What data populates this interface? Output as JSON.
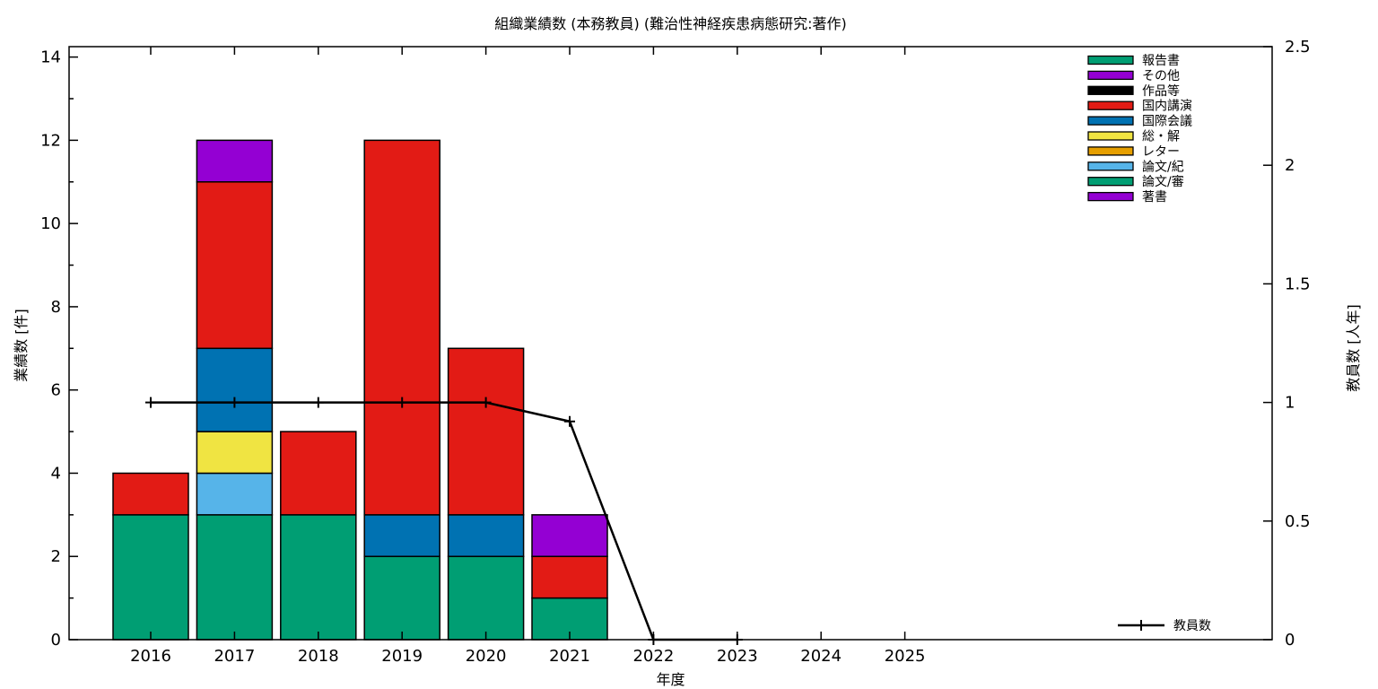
{
  "chart_data": {
    "type": "bar",
    "subtype": "stacked-bars-with-line",
    "title": "組織業績数 (本務教員) (難治性神経疾患病態研究:著作)",
    "xlabel": "年度",
    "ylabel": "業績数 [件]",
    "y2label": "教員数 [人年]",
    "categories": [
      "2016",
      "2017",
      "2018",
      "2019",
      "2020",
      "2021",
      "2022",
      "2023",
      "2024",
      "2025"
    ],
    "ylim": [
      0,
      14.25
    ],
    "y_ticks": [
      0,
      2,
      4,
      6,
      8,
      10,
      12,
      14
    ],
    "y_minor_ticks": [
      1,
      3,
      5,
      7,
      9,
      11,
      13
    ],
    "y2lim": [
      0,
      2.5
    ],
    "y2_ticks": [
      0,
      0.5,
      1,
      1.5,
      2,
      2.5
    ],
    "grid": false,
    "legend_position": "top-right-inside",
    "stack_note": "series listed top legend entry first; bars stack bottom-to-top in reverse of this list",
    "series": [
      {
        "name": "報告書",
        "color": "#009E73",
        "values": [
          0,
          0,
          0,
          0,
          0,
          0,
          0,
          0,
          0,
          0
        ]
      },
      {
        "name": "その他",
        "color": "#9400D3",
        "values": [
          0,
          1,
          0,
          0,
          0,
          1,
          0,
          0,
          0,
          0
        ]
      },
      {
        "name": "作品等",
        "color": "#000000",
        "values": [
          0,
          0,
          0,
          0,
          0,
          0,
          0,
          0,
          0,
          0
        ]
      },
      {
        "name": "国内講演",
        "color": "#E21B15",
        "values": [
          1,
          4,
          2,
          9,
          4,
          1,
          0,
          0,
          0,
          0
        ]
      },
      {
        "name": "国際会議",
        "color": "#0072B2",
        "values": [
          0,
          2,
          0,
          1,
          1,
          0,
          0,
          0,
          0,
          0
        ]
      },
      {
        "name": "総・解",
        "color": "#F0E442",
        "values": [
          0,
          1,
          0,
          0,
          0,
          0,
          0,
          0,
          0,
          0
        ]
      },
      {
        "name": "レター",
        "color": "#E69F00",
        "values": [
          0,
          0,
          0,
          0,
          0,
          0,
          0,
          0,
          0,
          0
        ]
      },
      {
        "name": "論文/紀",
        "color": "#56B4E9",
        "values": [
          0,
          1,
          0,
          0,
          0,
          0,
          0,
          0,
          0,
          0
        ]
      },
      {
        "name": "論文/審",
        "color": "#009E73",
        "values": [
          3,
          3,
          3,
          2,
          2,
          1,
          0,
          0,
          0,
          0
        ]
      },
      {
        "name": "著書",
        "color": "#9400D3",
        "values": [
          0,
          0,
          0,
          0,
          0,
          0,
          0,
          0,
          0,
          0
        ]
      }
    ],
    "bar_totals": [
      4,
      12,
      5,
      12,
      7,
      3,
      0,
      0,
      0,
      0
    ],
    "line_series": {
      "name": "教員数",
      "color": "#000000",
      "marker": "plus",
      "axis": "right",
      "x": [
        "2016",
        "2017",
        "2018",
        "2019",
        "2020",
        "2021",
        "2022",
        "2023"
      ],
      "values": [
        1.0,
        1.0,
        1.0,
        1.0,
        1.0,
        0.92,
        0,
        0
      ]
    }
  }
}
